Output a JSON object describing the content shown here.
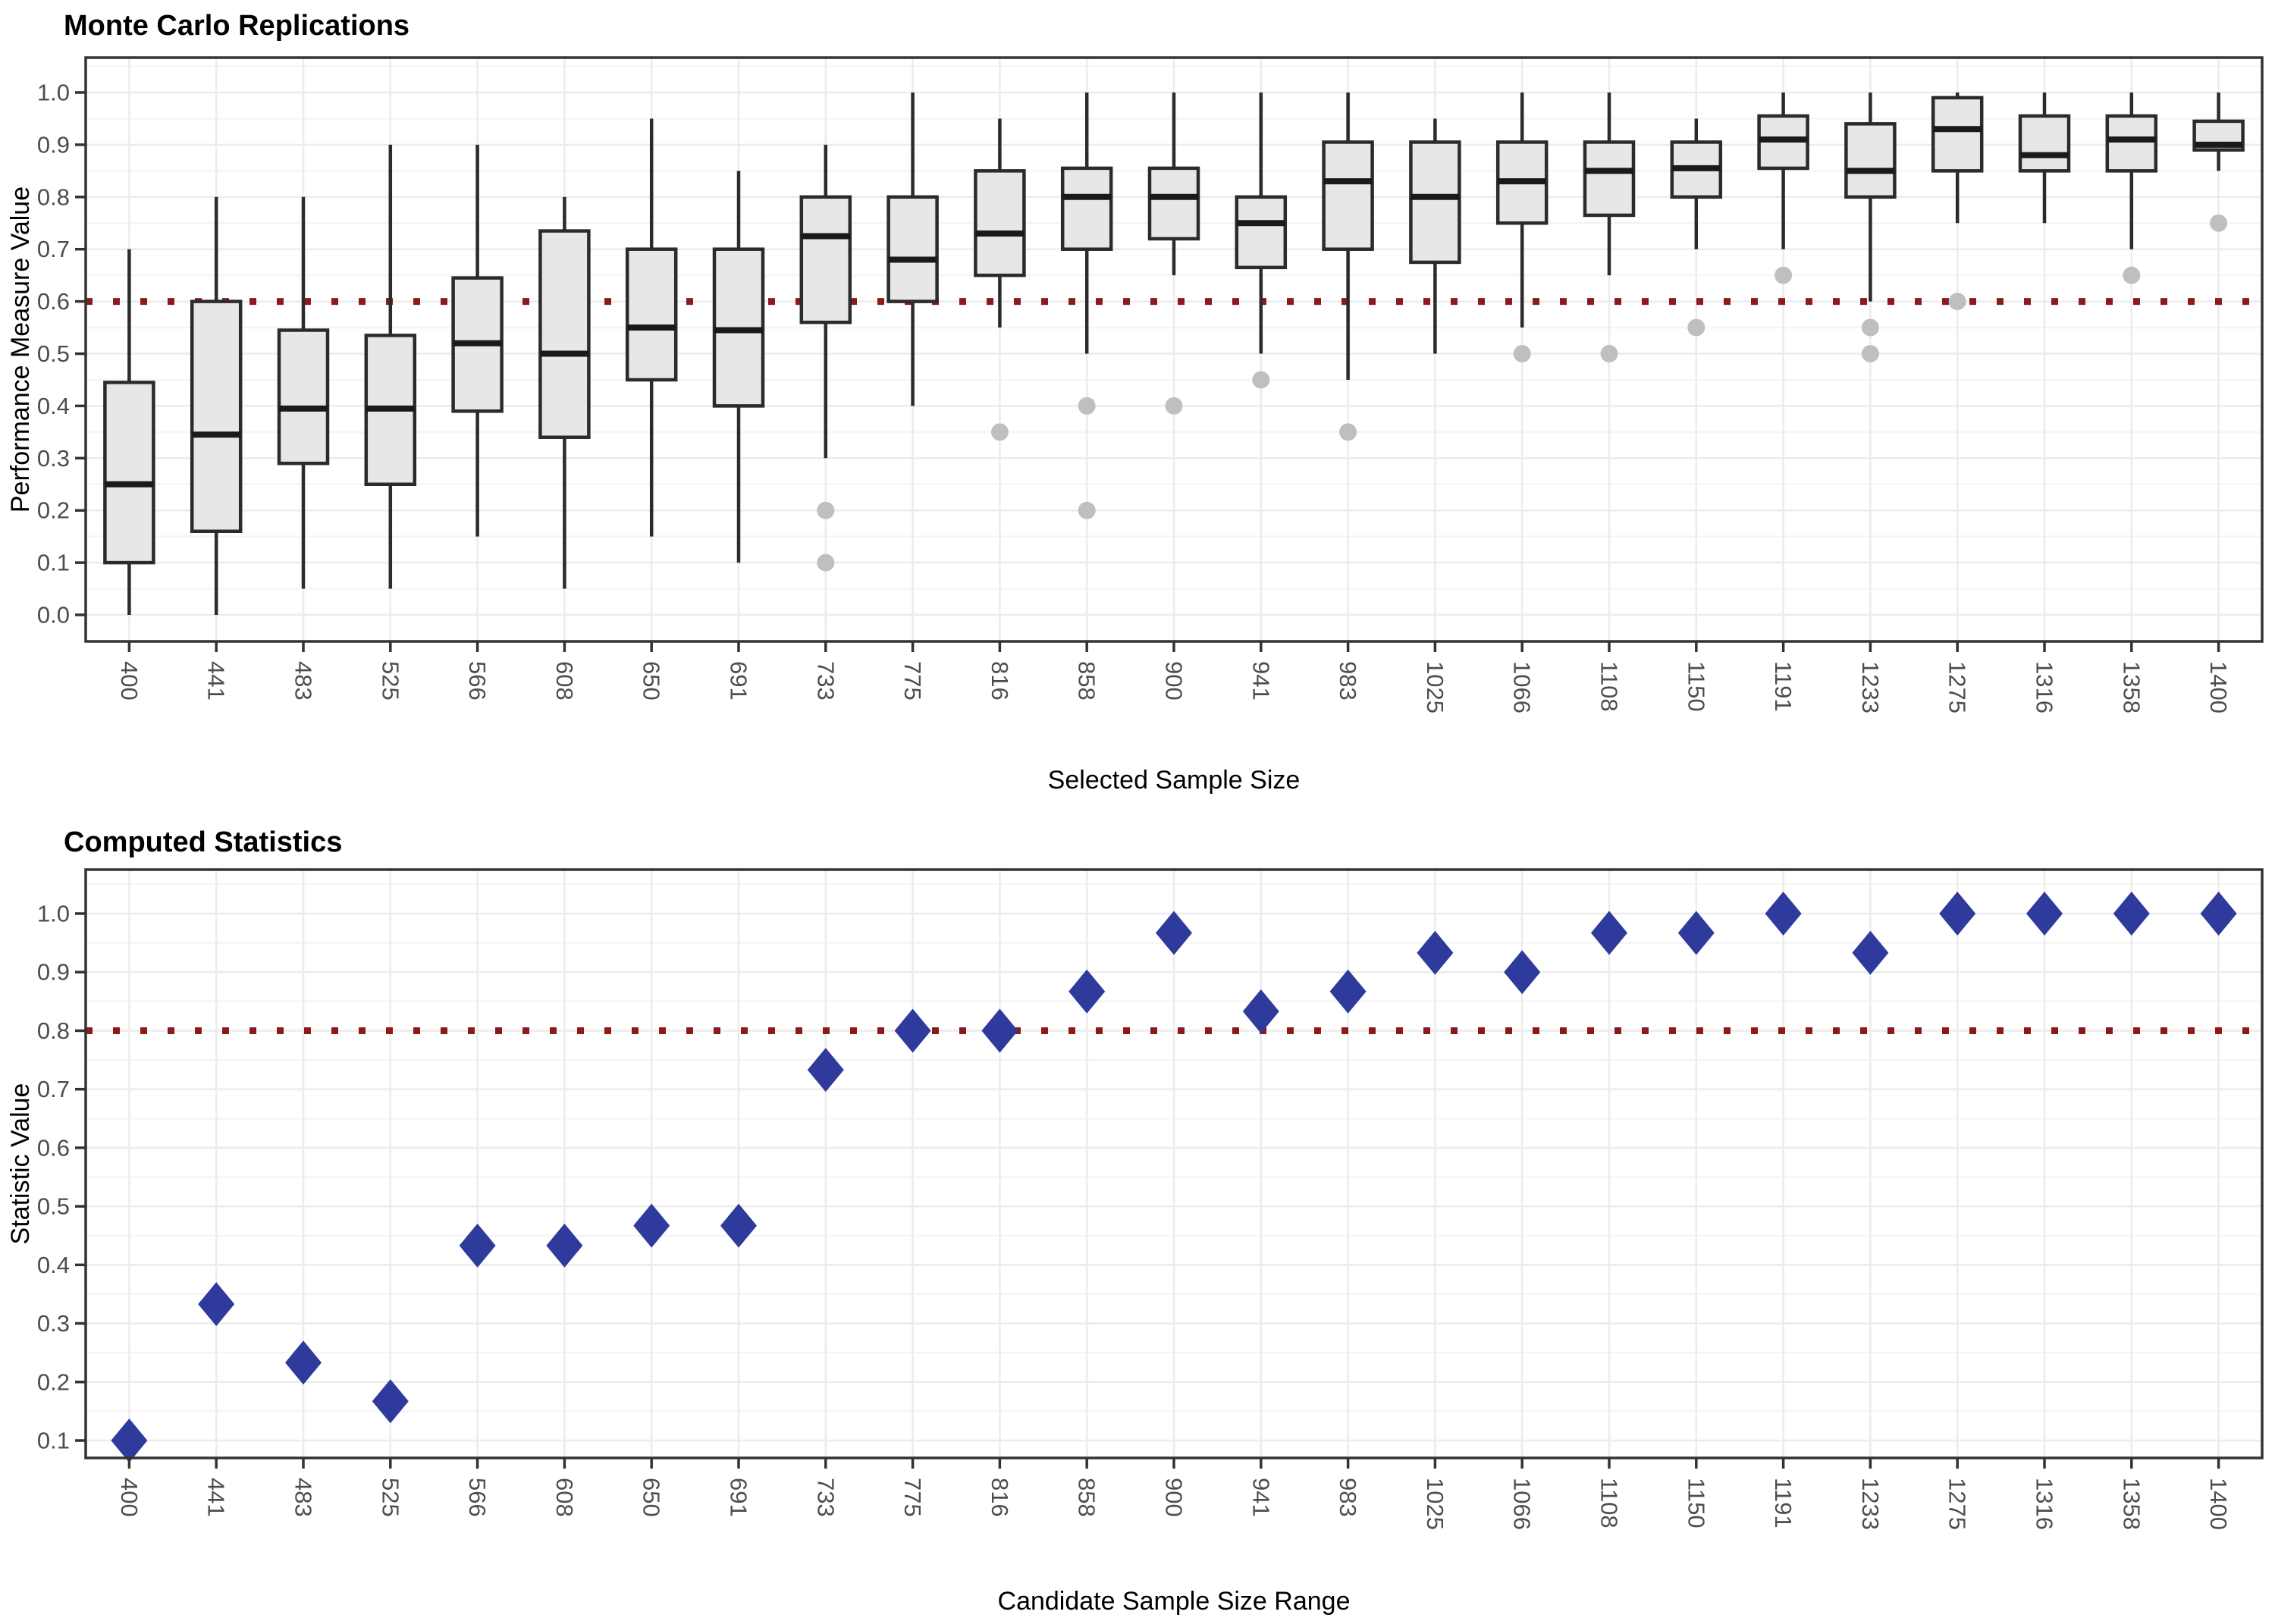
{
  "colors": {
    "reference_line": "#8b1a1a",
    "box_fill": "#e7e7e7",
    "box_border": "#2b2b2b",
    "median": "#1a1a1a",
    "outlier": "#bfbfbf",
    "diamond": "#2f3a9d",
    "grid_major": "#ececec",
    "grid_minor": "#f5f5f5",
    "panel_border": "#333333",
    "tick_label": "#4d4d4d",
    "text": "#000000",
    "background": "#ffffff"
  },
  "chart_data": [
    {
      "type": "boxplot",
      "title": "Monte Carlo Replications",
      "xlabel": "Selected Sample Size",
      "ylabel": "Performance Measure Value",
      "ylim": [
        0.0,
        1.0
      ],
      "y_tick_labels": [
        "0.0",
        "0.1",
        "0.2",
        "0.3",
        "0.4",
        "0.5",
        "0.6",
        "0.7",
        "0.8",
        "0.9",
        "1.0"
      ],
      "reference_line": 0.6,
      "grid": "on",
      "legend": "none",
      "categories": [
        "400",
        "441",
        "483",
        "525",
        "566",
        "608",
        "650",
        "691",
        "733",
        "775",
        "816",
        "858",
        "900",
        "941",
        "983",
        "1025",
        "1066",
        "1108",
        "1150",
        "1191",
        "1233",
        "1275",
        "1316",
        "1358",
        "1400"
      ],
      "boxes": [
        {
          "category": "400",
          "whisker_low": 0.0,
          "q1": 0.1,
          "median": 0.25,
          "q3": 0.445,
          "whisker_high": 0.7,
          "outliers": []
        },
        {
          "category": "441",
          "whisker_low": 0.0,
          "q1": 0.16,
          "median": 0.345,
          "q3": 0.6,
          "whisker_high": 0.8,
          "outliers": []
        },
        {
          "category": "483",
          "whisker_low": 0.05,
          "q1": 0.29,
          "median": 0.395,
          "q3": 0.545,
          "whisker_high": 0.8,
          "outliers": []
        },
        {
          "category": "525",
          "whisker_low": 0.05,
          "q1": 0.25,
          "median": 0.395,
          "q3": 0.535,
          "whisker_high": 0.9,
          "outliers": []
        },
        {
          "category": "566",
          "whisker_low": 0.15,
          "q1": 0.39,
          "median": 0.52,
          "q3": 0.645,
          "whisker_high": 0.9,
          "outliers": []
        },
        {
          "category": "608",
          "whisker_low": 0.05,
          "q1": 0.34,
          "median": 0.5,
          "q3": 0.735,
          "whisker_high": 0.8,
          "outliers": []
        },
        {
          "category": "650",
          "whisker_low": 0.15,
          "q1": 0.45,
          "median": 0.55,
          "q3": 0.7,
          "whisker_high": 0.95,
          "outliers": []
        },
        {
          "category": "691",
          "whisker_low": 0.1,
          "q1": 0.4,
          "median": 0.545,
          "q3": 0.7,
          "whisker_high": 0.85,
          "outliers": []
        },
        {
          "category": "733",
          "whisker_low": 0.3,
          "q1": 0.56,
          "median": 0.725,
          "q3": 0.8,
          "whisker_high": 0.9,
          "outliers": [
            0.2,
            0.1
          ]
        },
        {
          "category": "775",
          "whisker_low": 0.4,
          "q1": 0.6,
          "median": 0.68,
          "q3": 0.8,
          "whisker_high": 1.0,
          "outliers": []
        },
        {
          "category": "816",
          "whisker_low": 0.55,
          "q1": 0.65,
          "median": 0.73,
          "q3": 0.85,
          "whisker_high": 0.95,
          "outliers": [
            0.35
          ]
        },
        {
          "category": "858",
          "whisker_low": 0.5,
          "q1": 0.7,
          "median": 0.8,
          "q3": 0.855,
          "whisker_high": 1.0,
          "outliers": [
            0.4,
            0.2
          ]
        },
        {
          "category": "900",
          "whisker_low": 0.65,
          "q1": 0.72,
          "median": 0.8,
          "q3": 0.855,
          "whisker_high": 1.0,
          "outliers": [
            0.4
          ]
        },
        {
          "category": "941",
          "whisker_low": 0.5,
          "q1": 0.665,
          "median": 0.75,
          "q3": 0.8,
          "whisker_high": 1.0,
          "outliers": [
            0.45
          ]
        },
        {
          "category": "983",
          "whisker_low": 0.45,
          "q1": 0.7,
          "median": 0.83,
          "q3": 0.905,
          "whisker_high": 1.0,
          "outliers": [
            0.35
          ]
        },
        {
          "category": "1025",
          "whisker_low": 0.5,
          "q1": 0.675,
          "median": 0.8,
          "q3": 0.905,
          "whisker_high": 0.95,
          "outliers": []
        },
        {
          "category": "1066",
          "whisker_low": 0.55,
          "q1": 0.75,
          "median": 0.83,
          "q3": 0.905,
          "whisker_high": 1.0,
          "outliers": [
            0.5
          ]
        },
        {
          "category": "1108",
          "whisker_low": 0.65,
          "q1": 0.765,
          "median": 0.85,
          "q3": 0.905,
          "whisker_high": 1.0,
          "outliers": [
            0.5
          ]
        },
        {
          "category": "1150",
          "whisker_low": 0.7,
          "q1": 0.8,
          "median": 0.855,
          "q3": 0.905,
          "whisker_high": 0.95,
          "outliers": [
            0.55
          ]
        },
        {
          "category": "1191",
          "whisker_low": 0.7,
          "q1": 0.855,
          "median": 0.91,
          "q3": 0.955,
          "whisker_high": 1.0,
          "outliers": [
            0.65
          ]
        },
        {
          "category": "1233",
          "whisker_low": 0.6,
          "q1": 0.8,
          "median": 0.85,
          "q3": 0.94,
          "whisker_high": 1.0,
          "outliers": [
            0.55,
            0.5
          ]
        },
        {
          "category": "1275",
          "whisker_low": 0.75,
          "q1": 0.85,
          "median": 0.93,
          "q3": 0.99,
          "whisker_high": 1.0,
          "outliers": [
            0.6
          ]
        },
        {
          "category": "1316",
          "whisker_low": 0.75,
          "q1": 0.85,
          "median": 0.88,
          "q3": 0.955,
          "whisker_high": 1.0,
          "outliers": []
        },
        {
          "category": "1358",
          "whisker_low": 0.7,
          "q1": 0.85,
          "median": 0.91,
          "q3": 0.955,
          "whisker_high": 1.0,
          "outliers": [
            0.65
          ]
        },
        {
          "category": "1400",
          "whisker_low": 0.85,
          "q1": 0.89,
          "median": 0.9,
          "q3": 0.945,
          "whisker_high": 1.0,
          "outliers": [
            0.75
          ]
        }
      ]
    },
    {
      "type": "scatter",
      "title": "Computed Statistics",
      "xlabel": "Candidate Sample Size Range",
      "ylabel": "Statistic Value",
      "ylim": [
        0.1,
        1.0
      ],
      "y_tick_labels": [
        "0.1",
        "0.2",
        "0.3",
        "0.4",
        "0.5",
        "0.6",
        "0.7",
        "0.8",
        "0.9",
        "1.0"
      ],
      "reference_line": 0.8,
      "grid": "on",
      "legend": "none",
      "marker": "diamond",
      "categories": [
        "400",
        "441",
        "483",
        "525",
        "566",
        "608",
        "650",
        "691",
        "733",
        "775",
        "816",
        "858",
        "900",
        "941",
        "983",
        "1025",
        "1066",
        "1108",
        "1150",
        "1191",
        "1233",
        "1275",
        "1316",
        "1358",
        "1400"
      ],
      "values": [
        0.1,
        0.333,
        0.233,
        0.167,
        0.433,
        0.433,
        0.467,
        0.467,
        0.733,
        0.8,
        0.8,
        0.867,
        0.967,
        0.833,
        0.867,
        0.933,
        0.9,
        0.967,
        0.967,
        1.0,
        0.933,
        1.0,
        1.0,
        1.0,
        1.0
      ]
    }
  ]
}
